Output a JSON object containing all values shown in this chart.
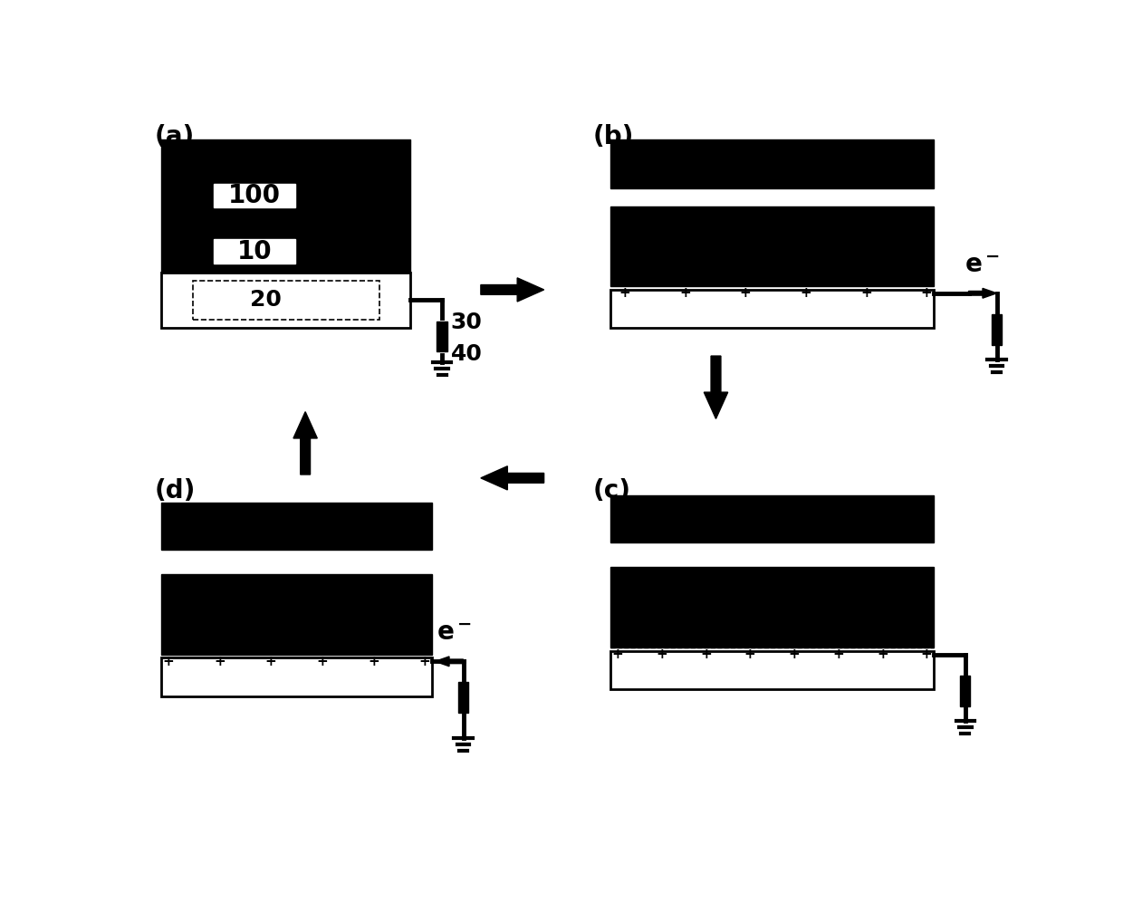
{
  "bg_color": "#ffffff",
  "black": "#000000",
  "white": "#ffffff",
  "panel_labels": [
    "(a)",
    "(b)",
    "(c)",
    "(d)"
  ],
  "label_100": "100",
  "label_10": "10",
  "label_20": "20",
  "label_30": "30",
  "label_40": "40"
}
